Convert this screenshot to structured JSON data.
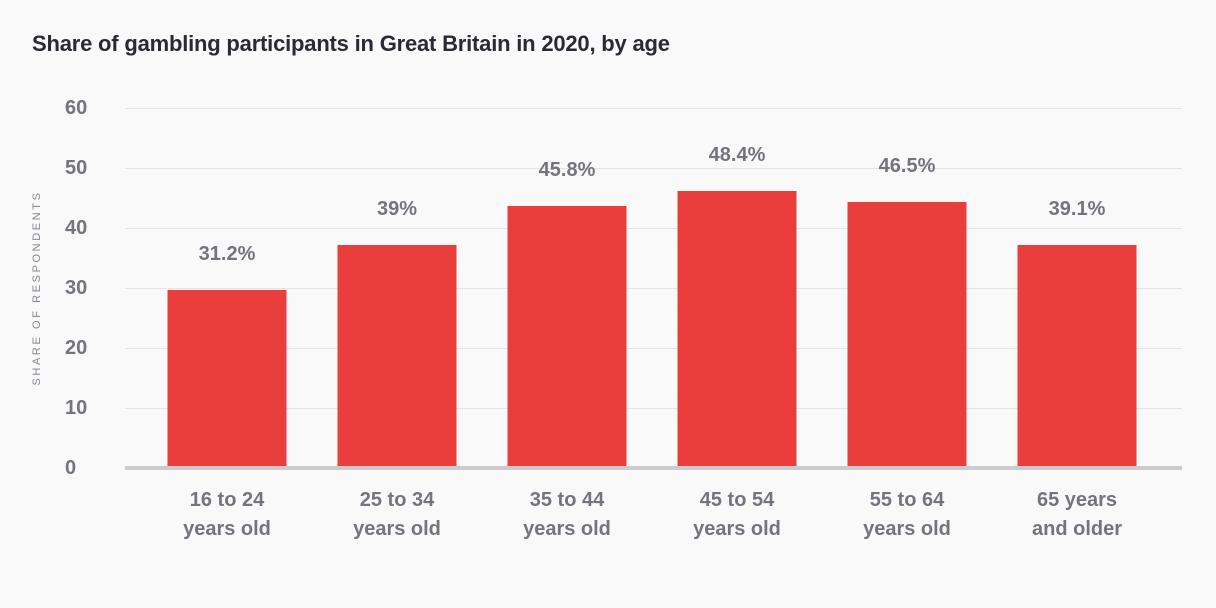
{
  "page": {
    "title": "Share of gambling participants in Great Britain in 2020, by age"
  },
  "colors": {
    "bar": "#ea3e3c",
    "background": "#f9f9fa",
    "gridline": "#e4e4e8",
    "axis_line": "#cbcbd0",
    "title_text": "#2a2a33",
    "label_text": "#74747c"
  },
  "chart_data": {
    "type": "bar",
    "title": "Share of gambling participants in Great Britain in 2020, by age",
    "categories": [
      "16 to 24 years old",
      "25 to 34 years old",
      "35 to 44 years old",
      "45 to 54 years old",
      "55 to 64 years old",
      "65 years and older"
    ],
    "category_lines": [
      [
        "16 to 24",
        "years old"
      ],
      [
        "25 to 34",
        "years old"
      ],
      [
        "35 to 44",
        "years old"
      ],
      [
        "45 to 54",
        "years old"
      ],
      [
        "55 to 64",
        "years old"
      ],
      [
        "65 years",
        "and older"
      ]
    ],
    "values": [
      31.2,
      39,
      45.8,
      48.4,
      46.5,
      39.1
    ],
    "value_labels": [
      "31.2%",
      "39%",
      "45.8%",
      "48.4%",
      "46.5%",
      "39.1%"
    ],
    "xlabel": "",
    "ylabel": "SHARE OF RESPONDENTS",
    "yticks": [
      0,
      10,
      20,
      30,
      40,
      50,
      60
    ],
    "ylim": [
      0,
      60
    ],
    "grid": true,
    "legend": false,
    "bar_color": "#ea3e3c"
  }
}
